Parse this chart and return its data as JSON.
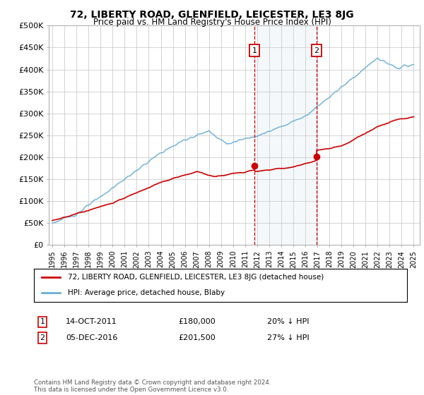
{
  "title": "72, LIBERTY ROAD, GLENFIELD, LEICESTER, LE3 8JG",
  "subtitle": "Price paid vs. HM Land Registry's House Price Index (HPI)",
  "ylim": [
    0,
    500000
  ],
  "yticks": [
    0,
    50000,
    100000,
    150000,
    200000,
    250000,
    300000,
    350000,
    400000,
    450000,
    500000
  ],
  "ytick_labels": [
    "£0",
    "£50K",
    "£100K",
    "£150K",
    "£200K",
    "£250K",
    "£300K",
    "£350K",
    "£400K",
    "£450K",
    "£500K"
  ],
  "hpi_color": "#6baed6",
  "price_color": "#cc0000",
  "marker1_price": 180000,
  "marker2_price": 201500,
  "marker1_year": 2011.79,
  "marker2_year": 2016.92,
  "marker1_date_str": "14-OCT-2011",
  "marker2_date_str": "05-DEC-2016",
  "marker1_hpi_text": "20% ↓ HPI",
  "marker2_hpi_text": "27% ↓ HPI",
  "legend_line1": "72, LIBERTY ROAD, GLENFIELD, LEICESTER, LE3 8JG (detached house)",
  "legend_line2": "HPI: Average price, detached house, Blaby",
  "footnote": "Contains HM Land Registry data © Crown copyright and database right 2024.\nThis data is licensed under the Open Government Licence v3.0.",
  "background_color": "#ffffff",
  "grid_color": "#cccccc",
  "shaded_region_color": "#dce9f5"
}
